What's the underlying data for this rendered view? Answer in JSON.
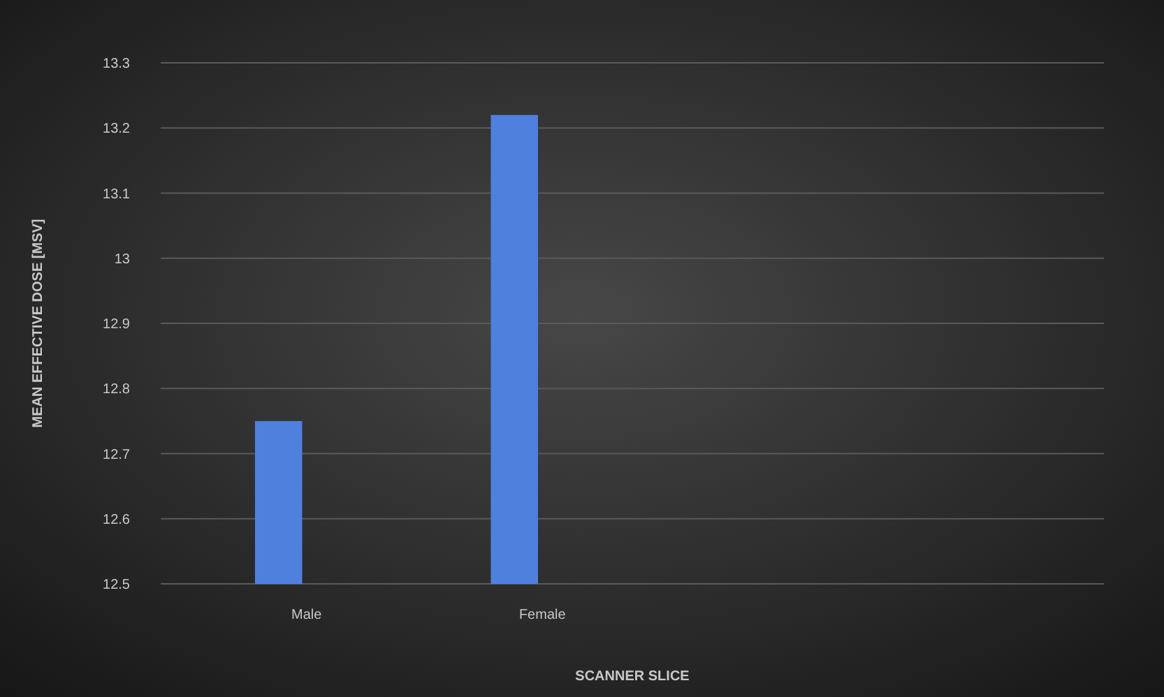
{
  "chart_data": {
    "type": "bar",
    "xlabel": "SCANNER SLICE",
    "ylabel": "MEAN EFFECTIVE DOSE [MSV]",
    "categories": [
      "Male",
      "Female",
      null,
      null
    ],
    "values": [
      12.75,
      13.22,
      null,
      null
    ],
    "color": "#4f80de",
    "ylim": [
      12.5,
      13.3
    ],
    "yticks": [
      12.5,
      12.6,
      12.7,
      12.8,
      12.9,
      13,
      13.1,
      13.2,
      13.3
    ],
    "grid": "y"
  }
}
